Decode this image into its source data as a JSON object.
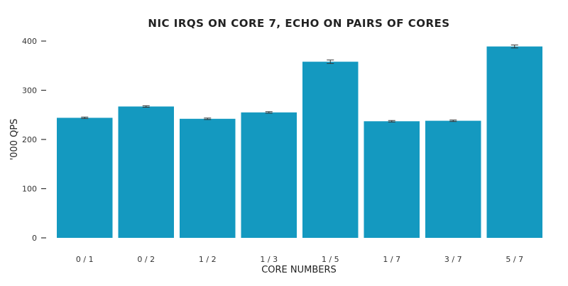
{
  "chart_data": {
    "type": "bar",
    "title": "NIC IRQS ON CORE 7, ECHO ON PAIRS OF CORES",
    "xlabel": "CORE NUMBERS",
    "ylabel": "'000 QPS",
    "categories": [
      "0 / 1",
      "0 / 2",
      "1 / 2",
      "1 / 3",
      "1 / 5",
      "1 / 7",
      "3 / 7",
      "5 / 7"
    ],
    "values": [
      244,
      267,
      242,
      255,
      358,
      237,
      238,
      389
    ],
    "errors": [
      1.5,
      1.5,
      1.5,
      1.5,
      3.5,
      1.5,
      1.5,
      3
    ],
    "ylim": [
      0,
      400
    ],
    "yticks": [
      0,
      100,
      200,
      300,
      400
    ],
    "grid": false,
    "legend": "none",
    "bar_color": "#1499c0",
    "error_color": "#333333"
  }
}
